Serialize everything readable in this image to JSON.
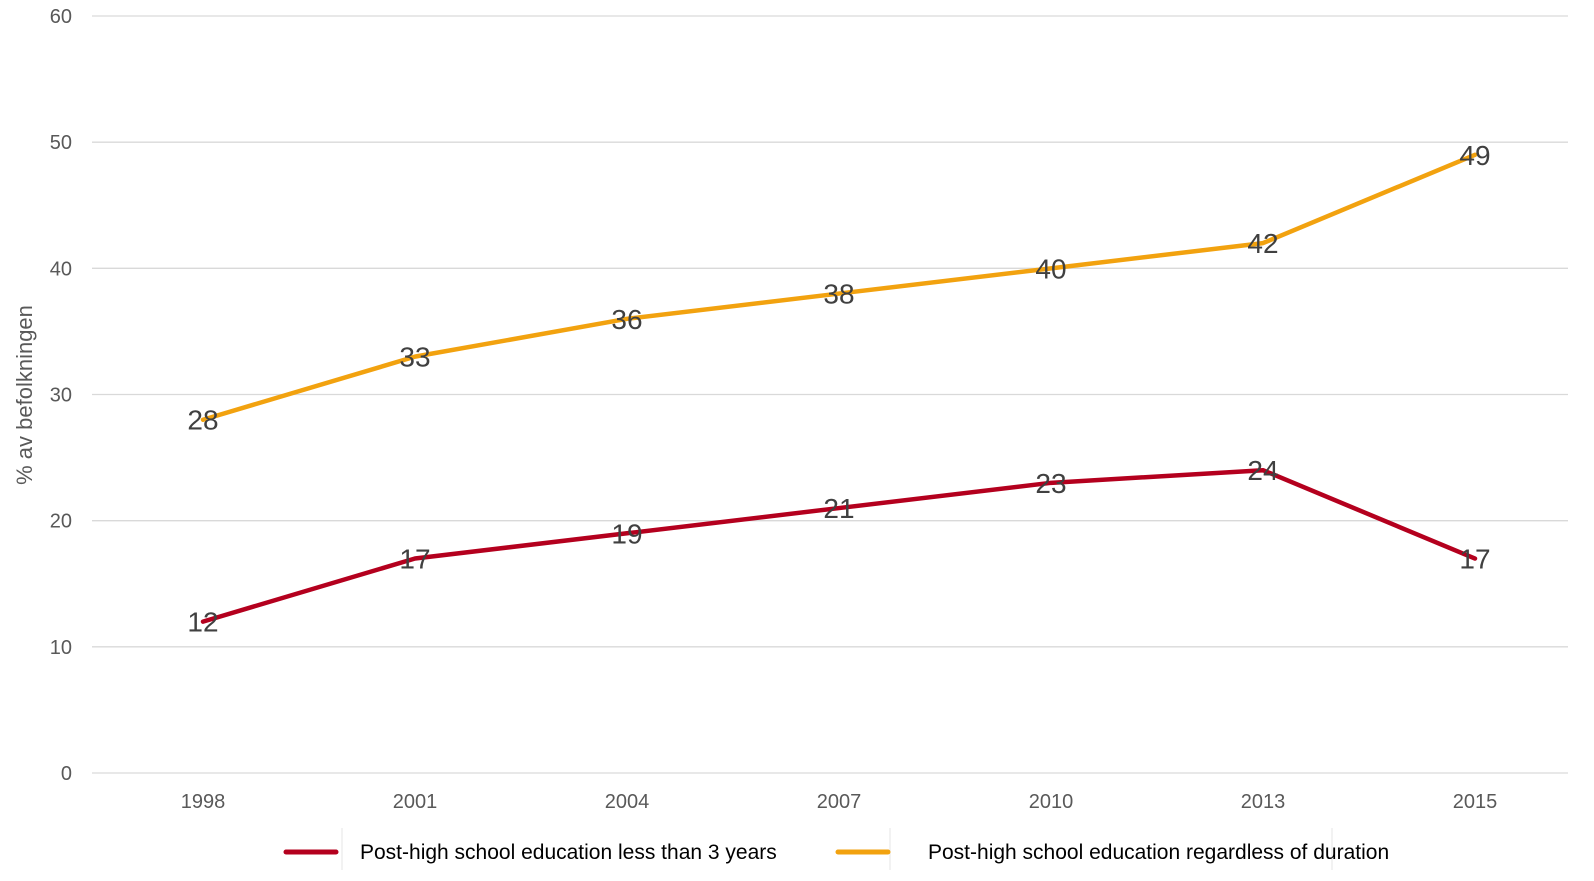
{
  "chart_data": {
    "type": "line",
    "categories": [
      "1998",
      "2001",
      "2004",
      "2007",
      "2010",
      "2013",
      "2015"
    ],
    "series": [
      {
        "name": "Post-high school education less than 3 years",
        "color": "#b4001e",
        "values": [
          12,
          17,
          19,
          21,
          23,
          24,
          17
        ]
      },
      {
        "name": "Post-high school education regardless of duration",
        "color": "#f2a20f",
        "values": [
          28,
          33,
          36,
          38,
          40,
          42,
          49
        ]
      }
    ],
    "title": "",
    "xlabel": "",
    "ylabel": "% av befolkningen",
    "ylim": [
      0,
      60
    ],
    "yticks": [
      0,
      10,
      20,
      30,
      40,
      50,
      60
    ],
    "grid": "horizontal",
    "legend": "bottom"
  }
}
